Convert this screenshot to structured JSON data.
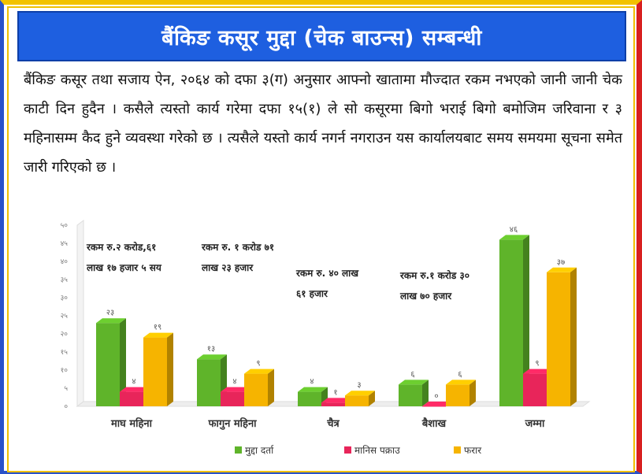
{
  "title": "बैंकिङ कसूर मुद्दा (चेक बाउन्स) सम्बन्धी",
  "paragraph": "बैंकिङ कसूर तथा सजाय ऐन, २०६४ को दफा ३(ग) अनुसार आफ्नो खातामा मौज्दात रकम नभएको जानी जानी चेक काटी दिन हुदैन । कसैले त्यस्तो कार्य गरेमा दफा १५(१) ले सो कसूरमा बिगो भराई बिगो बमोजिम जरिवाना र ३ महिनासम्म कैद हुने व्यवस्था गरेको छ । त्यसैले यस्तो कार्य नगर्न नगराउन यस कार्यालयबाट समय समयमा सूचना समेत जारी गरिएको छ ।",
  "chart_data": {
    "type": "bar",
    "categories": [
      "माघ महिना",
      "फागुन महिना",
      "चैत्र",
      "बैशाख",
      "जम्मा"
    ],
    "series": [
      {
        "name": "मुद्दा दर्ता",
        "values": [
          23,
          13,
          4,
          6,
          46
        ],
        "labels": [
          "२३",
          "१३",
          "४",
          "६",
          "४६"
        ],
        "color": "#5fb42a"
      },
      {
        "name": "मानिस पक्राउ",
        "values": [
          4,
          4,
          1,
          0,
          9
        ],
        "labels": [
          "४",
          "४",
          "१",
          "०",
          "९"
        ],
        "color": "#e8255a"
      },
      {
        "name": "फरार",
        "values": [
          19,
          9,
          3,
          6,
          37
        ],
        "labels": [
          "१९",
          "९",
          "३",
          "६",
          "३७"
        ],
        "color": "#f6b400"
      }
    ],
    "ylim": [
      0,
      50
    ],
    "yticks": [
      0,
      5,
      10,
      15,
      20,
      25,
      30,
      35,
      40,
      45,
      50
    ],
    "ytick_labels": [
      "०",
      "५",
      "१०",
      "१५",
      "२०",
      "२५",
      "३०",
      "३५",
      "४०",
      "४५",
      "५०"
    ],
    "annotations": [
      {
        "lines": [
          "रकम रु.२ करोड,६१",
          "लाख १७ हजार ५ सय"
        ],
        "category": "माघ महिना"
      },
      {
        "lines": [
          "रकम रु. १ करोड ७१",
          "लाख २३ हजार"
        ],
        "category": "फागुन महिना"
      },
      {
        "lines": [
          "रकम रु. ४० लाख",
          "६१ हजार"
        ],
        "category": "चैत्र"
      },
      {
        "lines": [
          "रकम रु.१ करोड ३०",
          "लाख ७० हजार"
        ],
        "category": "बैशाख"
      }
    ],
    "legend_position": "bottom",
    "grid": false,
    "style": "3d"
  }
}
